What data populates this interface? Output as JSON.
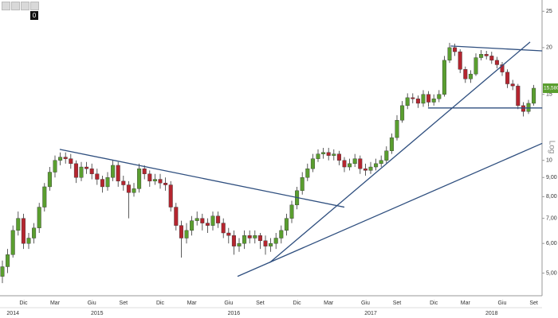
{
  "chart_data": {
    "type": "candlestick",
    "log_scale": true,
    "grid": false,
    "up_color": "#5a9e2f",
    "down_color": "#b5252f",
    "trendline_color": "#2f4f7f",
    "badge": "0",
    "scale_label": "Log",
    "ylim": [
      4.35,
      26.8
    ],
    "yticks": [
      {
        "value": 5,
        "label": "5,00"
      },
      {
        "value": 6,
        "label": "6,00"
      },
      {
        "value": 7,
        "label": "7,00"
      },
      {
        "value": 8,
        "label": "8,00"
      },
      {
        "value": 9,
        "label": "9,00"
      },
      10,
      15,
      20,
      25
    ],
    "categories": [
      null,
      null,
      null,
      null,
      "Dic",
      null,
      null,
      null,
      null,
      null,
      "Mar",
      null,
      null,
      null,
      null,
      null,
      null,
      "Giu",
      null,
      null,
      null,
      null,
      null,
      "Set",
      null,
      null,
      null,
      null,
      null,
      null,
      "Dic",
      null,
      null,
      null,
      null,
      null,
      "Mar",
      null,
      null,
      null,
      null,
      null,
      null,
      "Giu",
      null,
      null,
      null,
      null,
      null,
      "Set",
      null,
      null,
      null,
      null,
      null,
      null,
      "Dic",
      null,
      null,
      null,
      null,
      null,
      "Mar",
      null,
      null,
      null,
      null,
      null,
      null,
      "Giu",
      null,
      null,
      null,
      null,
      null,
      "Set",
      null,
      null,
      null,
      null,
      null,
      null,
      "Dic",
      null,
      null,
      null,
      null,
      null,
      "Mar",
      null,
      null,
      null,
      null,
      null,
      null,
      "Giu",
      null,
      null,
      null,
      null,
      null,
      "Set"
    ],
    "years": [
      null,
      null,
      "2014",
      null,
      null,
      null,
      null,
      null,
      null,
      null,
      null,
      null,
      null,
      null,
      null,
      null,
      null,
      null,
      "2015",
      null,
      null,
      null,
      null,
      null,
      null,
      null,
      null,
      null,
      null,
      null,
      null,
      null,
      null,
      null,
      null,
      null,
      null,
      null,
      null,
      null,
      null,
      null,
      null,
      null,
      "2016",
      null,
      null,
      null,
      null,
      null,
      null,
      null,
      null,
      null,
      null,
      null,
      null,
      null,
      null,
      null,
      null,
      null,
      null,
      null,
      null,
      null,
      null,
      null,
      null,
      null,
      "2017",
      null,
      null,
      null,
      null,
      null,
      null,
      null,
      null,
      null,
      null,
      null,
      null,
      null,
      null,
      null,
      null,
      null,
      null,
      null,
      null,
      null,
      null,
      "2018",
      null,
      null,
      null,
      null,
      null,
      null,
      null,
      null
    ],
    "open": [
      4.9,
      5.2,
      5.6,
      6.5,
      7.0,
      6.0,
      6.2,
      6.6,
      7.5,
      8.5,
      9.3,
      10.0,
      10.2,
      10.1,
      9.8,
      9.0,
      9.6,
      9.5,
      9.2,
      8.9,
      8.5,
      9.0,
      9.7,
      8.8,
      8.6,
      8.2,
      8.4,
      9.5,
      9.2,
      8.8,
      8.9,
      8.7,
      8.6,
      7.5,
      6.7,
      6.2,
      6.5,
      6.9,
      7.0,
      6.8,
      6.7,
      7.1,
      6.8,
      6.4,
      6.3,
      5.9,
      6.0,
      6.3,
      6.2,
      6.3,
      6.1,
      5.9,
      6.0,
      6.2,
      6.5,
      7.0,
      7.6,
      8.3,
      9.0,
      9.5,
      10.1,
      10.4,
      10.5,
      10.3,
      10.4,
      10.0,
      9.6,
      9.8,
      10.1,
      9.5,
      9.4,
      9.6,
      9.8,
      10.0,
      10.6,
      11.5,
      12.8,
      14.0,
      14.7,
      14.6,
      14.2,
      15.0,
      14.3,
      14.6,
      15.0,
      18.5,
      20.0,
      19.5,
      17.5,
      16.5,
      17.0,
      18.8,
      19.2,
      19.0,
      18.5,
      18.0,
      17.2,
      16.0,
      15.8,
      14.0,
      13.5,
      14.2
    ],
    "high": [
      5.4,
      5.8,
      6.7,
      7.3,
      7.2,
      6.4,
      6.8,
      7.7,
      8.7,
      9.6,
      10.3,
      10.5,
      10.5,
      10.4,
      10.0,
      9.9,
      9.9,
      9.8,
      9.5,
      9.1,
      9.3,
      10.0,
      9.9,
      9.1,
      8.8,
      8.7,
      9.8,
      9.7,
      9.4,
      9.2,
      9.2,
      9.0,
      8.8,
      7.7,
      6.9,
      6.8,
      7.1,
      7.3,
      7.2,
      7.0,
      7.3,
      7.3,
      7.0,
      6.6,
      6.5,
      6.2,
      6.5,
      6.5,
      6.5,
      6.4,
      6.3,
      6.2,
      6.4,
      6.7,
      7.2,
      7.8,
      8.5,
      9.3,
      9.8,
      10.4,
      10.7,
      10.8,
      10.8,
      10.7,
      10.6,
      10.2,
      10.1,
      10.4,
      10.3,
      9.8,
      9.9,
      10.1,
      10.3,
      10.9,
      11.8,
      13.2,
      14.4,
      15.1,
      15.1,
      14.9,
      15.4,
      15.3,
      15.0,
      15.4,
      19.0,
      20.6,
      20.5,
      19.8,
      17.8,
      17.4,
      19.3,
      19.7,
      19.6,
      19.5,
      18.9,
      18.3,
      17.5,
      16.4,
      16.0,
      14.3,
      14.5,
      15.9
    ],
    "low": [
      4.7,
      5.0,
      5.5,
      6.3,
      5.8,
      5.8,
      6.0,
      6.4,
      7.3,
      8.3,
      9.0,
      9.7,
      9.8,
      9.5,
      8.7,
      8.8,
      9.2,
      8.9,
      8.6,
      8.2,
      8.3,
      8.8,
      8.5,
      8.3,
      7.0,
      8.0,
      8.2,
      8.9,
      8.5,
      8.6,
      8.4,
      8.3,
      7.3,
      6.5,
      5.5,
      6.0,
      6.3,
      6.7,
      6.5,
      6.4,
      6.5,
      6.6,
      6.2,
      6.0,
      5.6,
      5.7,
      5.8,
      6.0,
      6.0,
      5.8,
      5.6,
      5.7,
      5.8,
      6.0,
      6.3,
      6.8,
      7.4,
      8.1,
      8.8,
      9.3,
      9.9,
      10.1,
      10.0,
      10.0,
      9.7,
      9.3,
      9.4,
      9.6,
      9.2,
      9.1,
      9.2,
      9.4,
      9.6,
      9.8,
      10.4,
      11.3,
      12.6,
      13.7,
      14.2,
      13.8,
      13.9,
      13.9,
      14.0,
      14.3,
      14.8,
      18.2,
      19.0,
      17.1,
      16.1,
      16.1,
      16.8,
      18.5,
      18.6,
      18.1,
      17.6,
      16.8,
      15.6,
      15.4,
      13.7,
      13.1,
      13.3,
      14.0
    ],
    "close": [
      5.2,
      5.6,
      6.5,
      7.0,
      6.0,
      6.2,
      6.6,
      7.5,
      8.5,
      9.3,
      10.0,
      10.2,
      10.1,
      9.8,
      9.0,
      9.6,
      9.5,
      9.2,
      8.9,
      8.5,
      9.0,
      9.7,
      8.8,
      8.6,
      8.2,
      8.4,
      9.5,
      9.2,
      8.8,
      8.9,
      8.7,
      8.6,
      7.5,
      6.7,
      6.2,
      6.5,
      6.9,
      7.0,
      6.8,
      6.7,
      7.1,
      6.8,
      6.4,
      6.3,
      5.9,
      6.0,
      6.3,
      6.2,
      6.3,
      6.1,
      5.9,
      6.0,
      6.2,
      6.5,
      7.0,
      7.6,
      8.3,
      9.0,
      9.5,
      10.1,
      10.4,
      10.5,
      10.3,
      10.4,
      10.0,
      9.6,
      9.8,
      10.1,
      9.5,
      9.4,
      9.6,
      9.8,
      10.0,
      10.6,
      11.5,
      12.8,
      14.0,
      14.7,
      14.6,
      14.2,
      15.0,
      14.3,
      14.6,
      15.0,
      18.5,
      20.0,
      19.5,
      17.5,
      16.5,
      17.0,
      18.8,
      19.2,
      19.0,
      18.5,
      18.0,
      17.2,
      16.0,
      15.8,
      14.0,
      13.5,
      14.2,
      15.58
    ],
    "last_price": {
      "value": 15.58,
      "label": "15,580"
    },
    "trendlines": [
      {
        "x": [
          10.9,
          65
        ],
        "y": [
          10.7,
          7.5
        ]
      },
      {
        "x": [
          44.7,
          102.6
        ],
        "y": [
          4.9,
          11.1
        ]
      },
      {
        "x": [
          50.8,
          100.3
        ],
        "y": [
          5.33,
          20.7
        ]
      },
      {
        "x": [
          85.2,
          102.6
        ],
        "y": [
          20.2,
          19.6
        ]
      },
      {
        "x": [
          80.9,
          102.6
        ],
        "y": [
          13.8,
          13.8
        ]
      }
    ]
  }
}
